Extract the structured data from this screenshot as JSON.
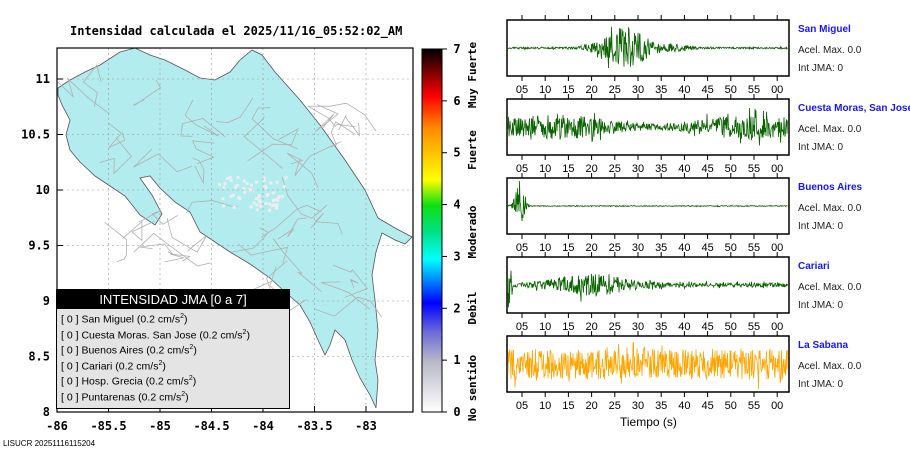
{
  "title": "Intensidad calculada el 2025/11/16_05:52:02_AM",
  "credit": "LISUCR 20251116115204",
  "chart_data": [
    {
      "type": "map",
      "title": "Intensidad calculada el 2025/11/16_05:52:02_AM",
      "xlim": [
        -86,
        -82.6
      ],
      "ylim": [
        8,
        11.3
      ],
      "xticks": [
        "-86",
        "-85.5",
        "-85",
        "-84.5",
        "-84",
        "-83.5",
        "-83"
      ],
      "yticks": [
        "8",
        "8.5",
        "9",
        "9.5",
        "10",
        "10.5",
        "11"
      ],
      "land_color": "#b3ecee",
      "colorbar": {
        "min": 0,
        "max": 7,
        "ticks": [
          "0",
          "1",
          "2",
          "3",
          "4",
          "5",
          "6",
          "7"
        ],
        "categories": [
          "No sentido",
          "Debil",
          "Moderado",
          "Fuerte",
          "Muy Fuerte"
        ]
      }
    },
    {
      "type": "line",
      "xlabel": "Tiempo (s)",
      "xticks": [
        "05",
        "10",
        "15",
        "20",
        "25",
        "30",
        "35",
        "40",
        "45",
        "50",
        "55",
        "00"
      ]
    }
  ],
  "legend": {
    "title": "INTENSIDAD JMA [0 a 7]",
    "items": [
      {
        "jma": "[ 0 ]",
        "name": "San Miguel",
        "acc": "(0.2 cm/s",
        "unit_exp": "2"
      },
      {
        "jma": "[ 0 ]",
        "name": "Cuesta Moras. San Jose",
        "acc": "(0.2 cm/s",
        "unit_exp": "2"
      },
      {
        "jma": "[ 0 ]",
        "name": "Buenos Aires",
        "acc": "(0.2 cm/s",
        "unit_exp": "2"
      },
      {
        "jma": "[ 0 ]",
        "name": "Cariari",
        "acc": "(0.2 cm/s",
        "unit_exp": "2"
      },
      {
        "jma": "[ 0 ]",
        "name": "Hosp. Grecia",
        "acc": "(0.2 cm/s",
        "unit_exp": "2"
      },
      {
        "jma": "[ 0 ]",
        "name": "Puntarenas",
        "acc": "(0.2 cm/s",
        "unit_exp": "2"
      }
    ]
  },
  "stations": [
    {
      "name": "San Miguel",
      "acel": "Acel. Max. 0.0",
      "jma": "Int JMA: 0",
      "color": "#0a6400",
      "shape": "burst"
    },
    {
      "name": "Cuesta Moras, San Jose",
      "acel": "Acel. Max. 0.0",
      "jma": "Int JMA: 0",
      "color": "#0a6400",
      "shape": "noise"
    },
    {
      "name": "Buenos Aires",
      "acel": "Acel. Max. 0.0",
      "jma": "Int JMA: 0",
      "color": "#0a6400",
      "shape": "spike"
    },
    {
      "name": "Cariari",
      "acel": "Acel. Max. 0.0",
      "jma": "Int JMA: 0",
      "color": "#0a6400",
      "shape": "cariari"
    },
    {
      "name": "La Sabana",
      "acel": "Acel. Max. 0.0",
      "jma": "Int JMA: 0",
      "color": "#ffa500",
      "shape": "noisewide"
    }
  ]
}
